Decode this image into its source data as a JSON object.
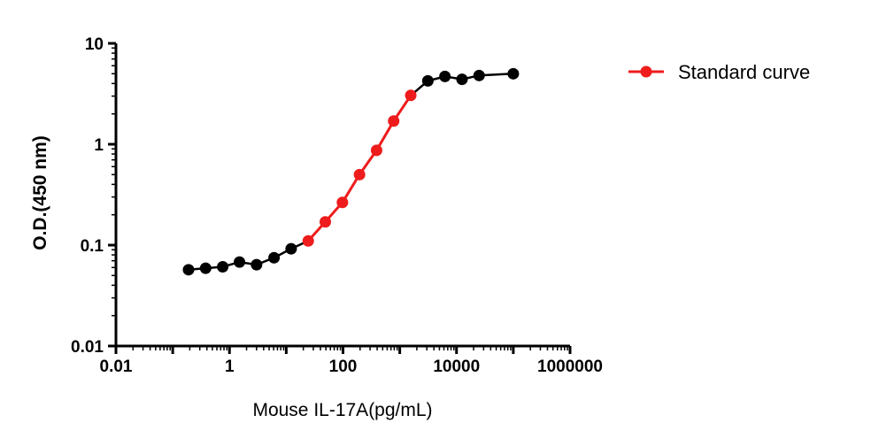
{
  "chart_data": {
    "type": "scatter",
    "x_scale": "log",
    "y_scale": "log",
    "xlabel": "Mouse IL-17A(pg/mL)",
    "ylabel": "O.D.(450 nm)",
    "xlim": [
      0.01,
      1000000
    ],
    "ylim": [
      0.01,
      10
    ],
    "x_ticks": [
      "0.01",
      "1",
      "100",
      "10000",
      "1000000"
    ],
    "y_ticks": [
      "0.01",
      "0.1",
      "1",
      "10"
    ],
    "grid": false,
    "legend_position": "top-right",
    "series": [
      {
        "name": "Standard curve",
        "color": "#ee1c1c",
        "x": [
          24.4,
          48.8,
          97.7,
          195.3,
          390.6,
          781.3,
          1562.5
        ],
        "y": [
          0.11,
          0.17,
          0.265,
          0.5,
          0.87,
          1.7,
          3.05
        ]
      },
      {
        "color": "#000000",
        "x": [
          0.19,
          0.38,
          0.76,
          1.5,
          3.0,
          6.1,
          12.2
        ],
        "y": [
          0.057,
          0.059,
          0.061,
          0.068,
          0.064,
          0.075,
          0.092
        ]
      },
      {
        "color": "#000000",
        "x": [
          3125,
          6250,
          12500,
          25000,
          100000
        ],
        "y": [
          4.25,
          4.7,
          4.4,
          4.8,
          5.0
        ]
      }
    ]
  }
}
